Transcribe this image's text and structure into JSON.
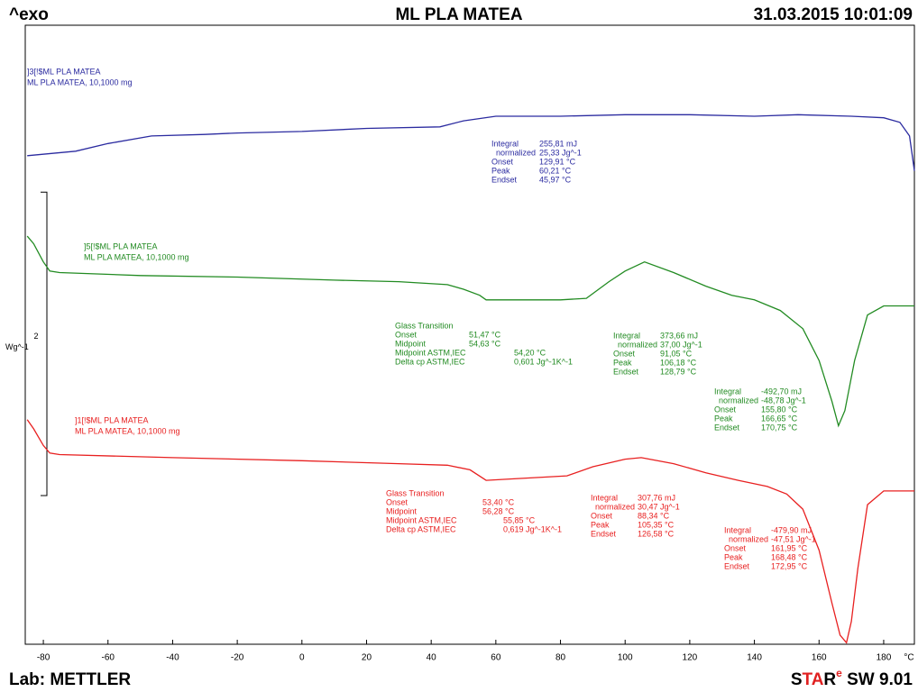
{
  "chart_data": {
    "type": "line",
    "exo_label": "^exo",
    "title": "ML PLA MATEA",
    "timestamp": "31.03.2015 10:01:09",
    "lab": "Lab: METTLER",
    "software": [
      "S",
      "TA",
      "R",
      "e",
      " SW 9.01"
    ],
    "x_unit": "°C",
    "xlim": [
      -85.6,
      189.5
    ],
    "xticks": [
      -80,
      -60,
      -40,
      -20,
      0,
      20,
      40,
      60,
      80,
      100,
      120,
      140,
      160,
      180
    ],
    "ylim": [
      0,
      4.08
    ],
    "scale_bar": {
      "value": 2,
      "label": "Wg^-1"
    },
    "series": [
      {
        "name": "]3[!$ML PLA MATEA",
        "sample": "ML PLA MATEA, 10,1000 mg",
        "color": "#2b2ba0",
        "x": [
          -85,
          -70,
          -60,
          -46.5,
          -30,
          -20,
          0,
          20,
          42.7,
          50,
          60,
          80,
          100,
          120,
          140,
          153.5,
          170,
          180,
          185,
          188,
          189.5
        ],
        "values": [
          3.22,
          3.25,
          3.3,
          3.35,
          3.36,
          3.37,
          3.38,
          3.4,
          3.41,
          3.45,
          3.48,
          3.48,
          3.49,
          3.49,
          3.48,
          3.49,
          3.48,
          3.47,
          3.44,
          3.35,
          3.12
        ]
      },
      {
        "name": "]5[!$ML PLA MATEA",
        "sample": "ML PLA MATEA, 10,1000 mg",
        "color": "#228b22",
        "x": [
          -85,
          -83,
          -80,
          -78,
          -75,
          -50,
          -20,
          10,
          30,
          45,
          50,
          55,
          57,
          65,
          80,
          88,
          95,
          100,
          106,
          115,
          125,
          133,
          140,
          148,
          155,
          160,
          164,
          166,
          168,
          171,
          175,
          180,
          189.5
        ],
        "values": [
          2.69,
          2.64,
          2.52,
          2.46,
          2.45,
          2.43,
          2.42,
          2.4,
          2.39,
          2.37,
          2.34,
          2.3,
          2.27,
          2.27,
          2.27,
          2.28,
          2.39,
          2.46,
          2.52,
          2.45,
          2.36,
          2.3,
          2.27,
          2.2,
          2.08,
          1.87,
          1.6,
          1.44,
          1.54,
          1.87,
          2.17,
          2.23,
          2.23
        ]
      },
      {
        "name": "]1[!$ML PLA MATEA",
        "sample": "ML PLA MATEA, 10,1000 mg",
        "color": "#e82020",
        "x": [
          -85,
          -83,
          -80,
          -78,
          -75,
          -40,
          0,
          30,
          45,
          52,
          57,
          65,
          82,
          90,
          100,
          105,
          115,
          125,
          135,
          144,
          150,
          155,
          160,
          164,
          166.5,
          168.5,
          170,
          172,
          175,
          180,
          189.5
        ],
        "values": [
          1.48,
          1.42,
          1.31,
          1.26,
          1.25,
          1.23,
          1.21,
          1.19,
          1.18,
          1.15,
          1.08,
          1.09,
          1.11,
          1.17,
          1.22,
          1.23,
          1.19,
          1.13,
          1.08,
          1.04,
          0.99,
          0.89,
          0.62,
          0.27,
          0.06,
          0.01,
          0.15,
          0.5,
          0.92,
          1.01,
          1.01
        ]
      }
    ],
    "annotations": [
      {
        "series": 0,
        "rows": [
          [
            "Integral",
            "255,81 mJ"
          ],
          [
            " normalized",
            "25,33 Jg^-1"
          ],
          [
            "Onset",
            "129,91 °C"
          ],
          [
            "Peak",
            "60,21 °C"
          ],
          [
            "Endset",
            "45,97 °C"
          ]
        ]
      },
      {
        "series": 1,
        "title": "Glass Transition",
        "rows": [
          [
            "Onset",
            "51,47 °C"
          ],
          [
            "Midpoint",
            "54,63 °C"
          ],
          [
            "Midpoint ASTM,IEC",
            "54,20 °C"
          ],
          [
            "Delta cp ASTM,IEC",
            "0,601 Jg^-1K^-1"
          ]
        ]
      },
      {
        "series": 1,
        "rows": [
          [
            "Integral",
            "373,66 mJ"
          ],
          [
            " normalized",
            "37,00 Jg^-1"
          ],
          [
            "Onset",
            "91,05 °C"
          ],
          [
            "Peak",
            "106,18 °C"
          ],
          [
            "Endset",
            "128,79 °C"
          ]
        ]
      },
      {
        "series": 1,
        "rows": [
          [
            "Integral",
            "-492,70 mJ"
          ],
          [
            " normalized",
            "-48,78 Jg^-1"
          ],
          [
            "Onset",
            "155,80 °C"
          ],
          [
            "Peak",
            "166,65 °C"
          ],
          [
            "Endset",
            "170,75 °C"
          ]
        ]
      },
      {
        "series": 2,
        "title": "Glass Transition",
        "rows": [
          [
            "Onset",
            "53,40 °C"
          ],
          [
            "Midpoint",
            "56,28 °C"
          ],
          [
            "Midpoint ASTM,IEC",
            "55,85 °C"
          ],
          [
            "Delta cp ASTM,IEC",
            "0,619 Jg^-1K^-1"
          ]
        ]
      },
      {
        "series": 2,
        "rows": [
          [
            "Integral",
            "307,76 mJ"
          ],
          [
            " normalized",
            "30,47 Jg^-1"
          ],
          [
            "Onset",
            "88,34 °C"
          ],
          [
            "Peak",
            "105,35 °C"
          ],
          [
            "Endset",
            "126,58 °C"
          ]
        ]
      },
      {
        "series": 2,
        "rows": [
          [
            "Integral",
            "-479,90 mJ"
          ],
          [
            " normalized",
            "-47,51 Jg^-1"
          ],
          [
            "Onset",
            "161,95 °C"
          ],
          [
            "Peak",
            "168,48 °C"
          ],
          [
            "Endset",
            "172,95 °C"
          ]
        ]
      }
    ]
  }
}
